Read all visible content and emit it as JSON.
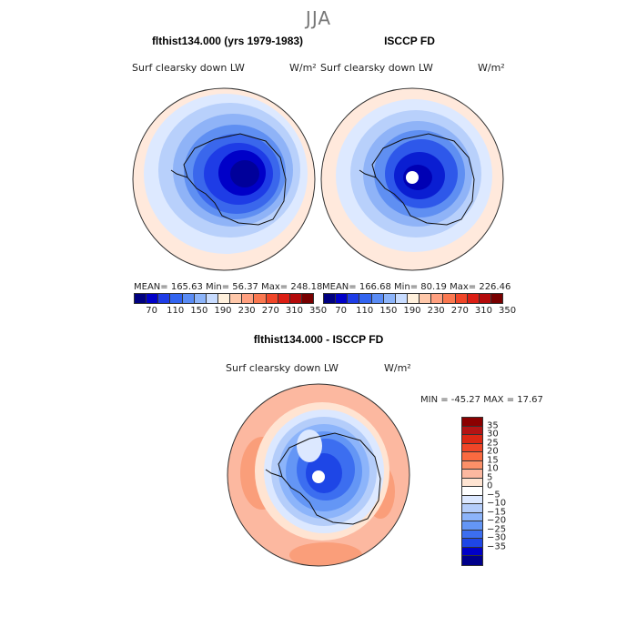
{
  "season_title": "JJA",
  "panels": [
    {
      "title": "flthist134.000 (yrs 1979-1983)",
      "variable": "Surf clearsky down LW",
      "units": "W/m²",
      "stats": "MEAN= 165.63  Min=  56.37  Max= 248.18"
    },
    {
      "title": "ISCCP FD",
      "variable": "Surf clearsky down LW",
      "units": "W/m²",
      "stats": "MEAN= 166.68  Min=  80.19  Max= 226.46"
    }
  ],
  "abs_colorbar": {
    "labels": [
      "70",
      "110",
      "150",
      "190",
      "230",
      "270",
      "310",
      "350"
    ],
    "colors": [
      "#000080",
      "#0000c8",
      "#1e3ce6",
      "#3264f0",
      "#5a8cf5",
      "#8cb4fa",
      "#c8dcff",
      "#fff0dc",
      "#ffc8aa",
      "#ffa080",
      "#fa7850",
      "#f04628",
      "#dc1e14",
      "#b40a0a",
      "#780000"
    ]
  },
  "diff_panel": {
    "title": "flthist134.000 - ISCCP FD",
    "variable": "Surf clearsky down LW",
    "units": "W/m²",
    "stats": "MIN = -45.27 MAX =  17.67"
  },
  "diff_colorbar": {
    "labels": [
      "35",
      "30",
      "25",
      "20",
      "15",
      "10",
      "5",
      "0",
      "−5",
      "−10",
      "−15",
      "−20",
      "−25",
      "−30",
      "−35"
    ],
    "colors": [
      "#8b0000",
      "#b41414",
      "#dc2814",
      "#f04628",
      "#fa6a40",
      "#fc9068",
      "#fcb8a0",
      "#ffe4d2",
      "#ffffff",
      "#dce8ff",
      "#b4cdfa",
      "#8cb4fa",
      "#6496f5",
      "#3c6ef0",
      "#1e46e6",
      "#0000c8",
      "#00008b"
    ]
  }
}
